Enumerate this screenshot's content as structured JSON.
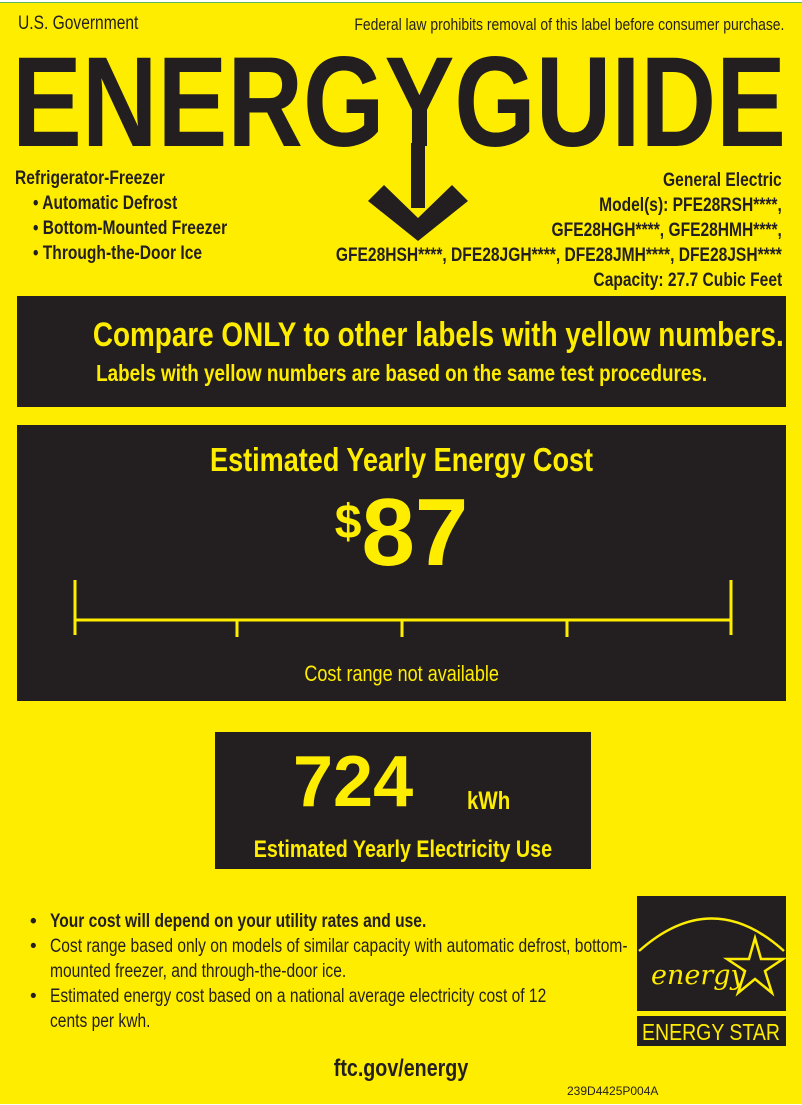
{
  "header": {
    "left": "U.S. Government",
    "right": "Federal law prohibits removal of this label before consumer purchase.",
    "title": "ENERGYGUIDE"
  },
  "product": {
    "type": "Refrigerator-Freezer",
    "features": [
      "Automatic Defrost",
      "Bottom-Mounted Freezer",
      "Through-the-Door Ice"
    ]
  },
  "manufacturer": {
    "brand": "General Electric",
    "model_lines": [
      "Model(s): PFE28RSH****,",
      "GFE28HGH****, GFE28HMH****,",
      "GFE28HSH****, DFE28JGH****, DFE28JMH****, DFE28JSH****"
    ],
    "capacity": "Capacity: 27.7 Cubic Feet"
  },
  "compare": {
    "headline": "Compare ONLY to other labels with yellow numbers.",
    "subline": "Labels with yellow numbers are based on the same test procedures."
  },
  "cost": {
    "heading": "Estimated Yearly Energy Cost",
    "currency": "$",
    "value": "87",
    "range_note": "Cost range not available"
  },
  "electricity": {
    "value": "724",
    "unit": "kWh",
    "label": "Estimated Yearly Electricity Use"
  },
  "notes": [
    "Your cost will depend on your utility rates and use.",
    "Cost range based only on models of similar capacity with automatic defrost, bottom-mounted freezer, and through-the-door ice.",
    "Estimated energy cost based on a national average electricity cost of 12 cents per kwh."
  ],
  "energy_star": {
    "script": "energy",
    "label": "ENERGY STAR"
  },
  "footer": {
    "url": "ftc.gov/energy",
    "code": "239D4425P004A"
  },
  "colors": {
    "label_yellow": "#ffed00",
    "dark": "#231f20"
  }
}
